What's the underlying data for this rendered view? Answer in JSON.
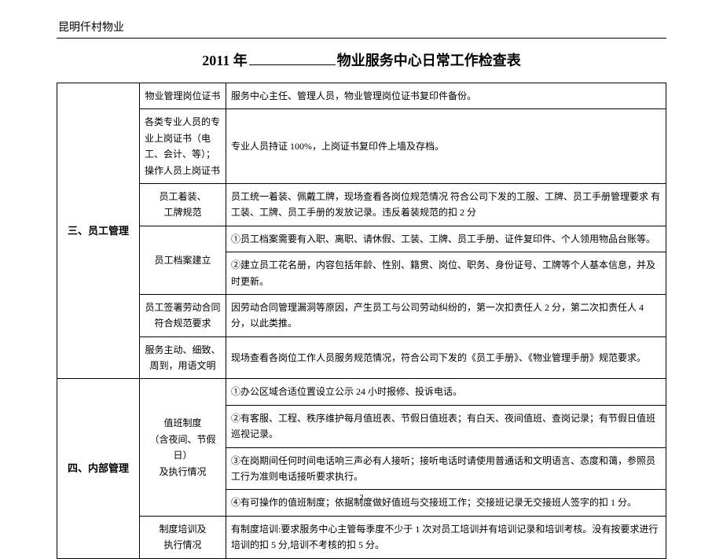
{
  "header": {
    "company": "昆明仟村物业"
  },
  "title": {
    "year": "2011 年",
    "suffix": "物业服务中心日常工作检查表"
  },
  "table": {
    "section3": {
      "label": "三、员工管理",
      "rows": [
        {
          "item": "物业管理岗位证书",
          "desc": "服务中心主任、管理人员，物业管理岗位证书复印件备份。"
        },
        {
          "item": "各类专业人员的专业上岗证书（电工、会计、等）；操作人员上岗证书",
          "desc": "专业人员持证 100%，上岗证书复印件上墙及存档。"
        },
        {
          "item": "员工着装、\n工牌规范",
          "desc": "员工统一着装、佩戴工牌，现场查看各岗位规范情况 符合公司下发的工服、工牌、员工手册管理要求 有工装、工牌、员工手册的发放记录。违反着装规范的扣 2 分"
        },
        {
          "item": "员工档案建立",
          "desc1": "①员工档案需要有入职、离职、请休假、工装、工牌、员工手册、证件复印件、个人领用物品台账等。",
          "desc2": "②建立员工花名册，内容包括年龄、性别、籍贯、岗位、职务、身份证号、工牌等个人基本信息，并及时更新。"
        },
        {
          "item": "员工签署劳动合同符合规范要求",
          "desc": "因劳动合同管理漏洞等原因，产生员工与公司劳动纠纷的，第一次扣责任人 2 分，第二次扣责任人 4 分，以此类推。"
        },
        {
          "item": "服务主动、细致、周到，用语文明",
          "desc": "现场查看各岗位工作人员服务规范情况，符合公司下发的《员工手册》、《物业管理手册》规范要求。"
        }
      ]
    },
    "section4": {
      "label": "四、内部管理",
      "rows": [
        {
          "item": "值班制度\n（含夜间、节假日）\n及执行情况",
          "desc1": "①办公区域合适位置设立公示 24 小时报修、投诉电话。",
          "desc2": "②有客服、工程、秩序维护每月值班表、节假日值班表；有白天、夜间值班、查岗记录；有节假日值班巡视记录。",
          "desc3": "③在岗期间任何时间电话响三声必有人接听；接听电话时请使用普通话和文明语言、态度和蔼，参照员工行为准则电话接听要求执行。",
          "desc4": "④有可操作的值班制度；依据制度做好值班与交接班工作；交接班记录无交接班人签字的扣 1 分。"
        },
        {
          "item": "制度培训及\n执行情况",
          "desc": "有制度培训:要求服务中心主管每季度不少于 1 次对员工培训并有培训记录和培训考核。没有按要求进行培训的扣 5 分,培训不考核的扣 5 分。"
        }
      ]
    }
  },
  "page_number": "2"
}
